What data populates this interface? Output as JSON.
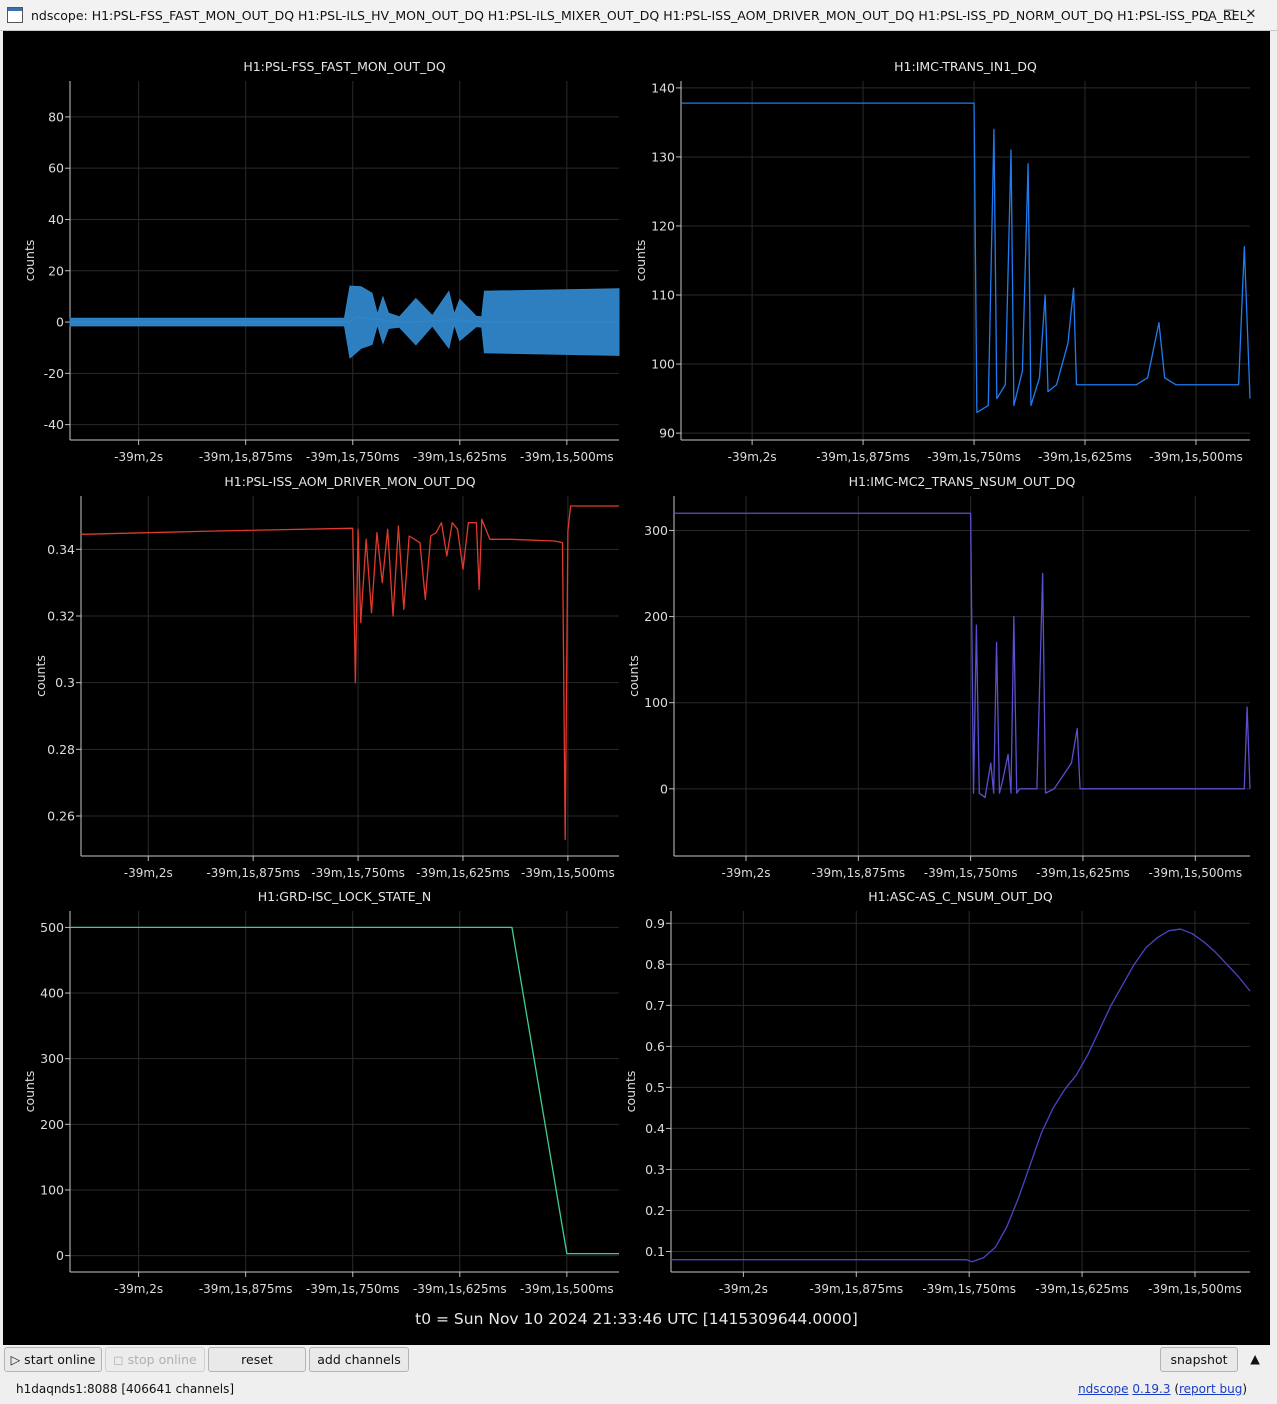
{
  "window": {
    "title": "ndscope: H1:PSL-FSS_FAST_MON_OUT_DQ H1:PSL-ILS_HV_MON_OUT_DQ H1:PSL-ILS_MIXER_OUT_DQ H1:PSL-ISS_AOM_DRIVER_MON_OUT_DQ H1:PSL-ISS_PD_NORM_OUT_DQ H1:PSL-ISS_PDA_REL_",
    "minimize_glyph": "_",
    "maximize_glyph": "□",
    "close_glyph": "✕"
  },
  "toolbar": {
    "start_online": "▷ start online",
    "stop_online": "◻ stop online",
    "reset": "reset",
    "add_channels": "add channels",
    "snapshot": "snapshot",
    "collapse_glyph": "▲"
  },
  "status": {
    "server": "h1daqnds1:8088  [406641 channels]",
    "app_name": "ndscope",
    "version": "0.19.3",
    "open_paren": " (",
    "report_bug": "report bug",
    "close_paren": ")"
  },
  "t0_label": "t0 = Sun Nov 10 2024 21:33:46 UTC [1415309644.0000]",
  "chart_data": [
    {
      "type": "line",
      "title": "H1:PSL-FSS_FAST_MON_OUT_DQ",
      "ylabel": "counts",
      "ylim": [
        -46,
        94
      ],
      "yticks": [
        -40,
        -20,
        0,
        20,
        40,
        60,
        80
      ],
      "xticks": [
        "-39m,2s",
        "-39m,1s,875ms",
        "-39m,1s,750ms",
        "-39m,1s,625ms",
        "-39m,1s,500ms"
      ],
      "color": "#2f86c9",
      "grid": true,
      "series": [
        {
          "points": [
            [
              0,
              0
            ],
            [
              0.51,
              0
            ],
            [
              0.51,
              0
            ],
            [
              0.52,
              2
            ],
            [
              0.6,
              0
            ],
            [
              0.62,
              0
            ],
            [
              0.7,
              1
            ],
            [
              0.75,
              0
            ],
            [
              0.76,
              0
            ],
            [
              1.0,
              0
            ]
          ],
          "envelope": [
            [
              0,
              1.5
            ],
            [
              0.5,
              1.5
            ],
            [
              0.51,
              14
            ],
            [
              0.53,
              12
            ],
            [
              0.55,
              10
            ],
            [
              0.56,
              2
            ],
            [
              0.57,
              9
            ],
            [
              0.58,
              3
            ],
            [
              0.6,
              2
            ],
            [
              0.63,
              9
            ],
            [
              0.66,
              2
            ],
            [
              0.69,
              11
            ],
            [
              0.7,
              2
            ],
            [
              0.71,
              8
            ],
            [
              0.74,
              2
            ],
            [
              0.75,
              2
            ],
            [
              0.755,
              12
            ],
            [
              1.0,
              13
            ]
          ]
        }
      ]
    },
    {
      "type": "line",
      "title": "H1:IMC-TRANS_IN1_DQ",
      "ylabel": "counts",
      "ylim": [
        89,
        141
      ],
      "yticks": [
        90,
        100,
        110,
        120,
        130,
        140
      ],
      "xticks": [
        "-39m,2s",
        "-39m,1s,875ms",
        "-39m,1s,750ms",
        "-39m,1s,625ms",
        "-39m,1s,500ms"
      ],
      "color": "#1f7cf0",
      "grid": true,
      "series": [
        {
          "points": [
            [
              0,
              137.8
            ],
            [
              0.51,
              137.8
            ],
            [
              0.515,
              137.8
            ],
            [
              0.52,
              93
            ],
            [
              0.54,
              94
            ],
            [
              0.55,
              134
            ],
            [
              0.555,
              95
            ],
            [
              0.57,
              97
            ],
            [
              0.58,
              131
            ],
            [
              0.585,
              94
            ],
            [
              0.6,
              99
            ],
            [
              0.61,
              129
            ],
            [
              0.615,
              94
            ],
            [
              0.63,
              98
            ],
            [
              0.64,
              110
            ],
            [
              0.645,
              96
            ],
            [
              0.66,
              97
            ],
            [
              0.68,
              103
            ],
            [
              0.69,
              111
            ],
            [
              0.695,
              97
            ],
            [
              0.8,
              97
            ],
            [
              0.82,
              98
            ],
            [
              0.84,
              106
            ],
            [
              0.85,
              98
            ],
            [
              0.87,
              97
            ],
            [
              0.98,
              97
            ],
            [
              0.99,
              117
            ],
            [
              1.0,
              95
            ]
          ]
        }
      ]
    },
    {
      "type": "line",
      "title": "H1:PSL-ISS_AOM_DRIVER_MON_OUT_DQ",
      "ylabel": "counts",
      "ylim": [
        0.248,
        0.356
      ],
      "yticks": [
        0.26,
        0.28,
        0.3,
        0.32,
        0.34
      ],
      "xticks": [
        "-39m,2s",
        "-39m,1s,875ms",
        "-39m,1s,750ms",
        "-39m,1s,625ms",
        "-39m,1s,500ms"
      ],
      "color": "#e03a2e",
      "grid": true,
      "series": [
        {
          "points": [
            [
              0,
              0.3445
            ],
            [
              0.25,
              0.3455
            ],
            [
              0.5,
              0.3463
            ],
            [
              0.505,
              0.3463
            ],
            [
              0.51,
              0.3
            ],
            [
              0.515,
              0.346
            ],
            [
              0.52,
              0.318
            ],
            [
              0.53,
              0.343
            ],
            [
              0.54,
              0.321
            ],
            [
              0.55,
              0.345
            ],
            [
              0.56,
              0.33
            ],
            [
              0.57,
              0.346
            ],
            [
              0.58,
              0.32
            ],
            [
              0.59,
              0.347
            ],
            [
              0.6,
              0.322
            ],
            [
              0.61,
              0.344
            ],
            [
              0.63,
              0.342
            ],
            [
              0.64,
              0.325
            ],
            [
              0.65,
              0.344
            ],
            [
              0.66,
              0.345
            ],
            [
              0.67,
              0.348
            ],
            [
              0.68,
              0.338
            ],
            [
              0.69,
              0.348
            ],
            [
              0.7,
              0.346
            ],
            [
              0.71,
              0.334
            ],
            [
              0.72,
              0.348
            ],
            [
              0.735,
              0.348
            ],
            [
              0.74,
              0.328
            ],
            [
              0.745,
              0.349
            ],
            [
              0.76,
              0.343
            ],
            [
              0.8,
              0.343
            ],
            [
              0.88,
              0.3425
            ],
            [
              0.895,
              0.342
            ],
            [
              0.9,
              0.253
            ],
            [
              0.905,
              0.3455
            ],
            [
              0.91,
              0.353
            ],
            [
              1.0,
              0.353
            ]
          ]
        }
      ]
    },
    {
      "type": "line",
      "title": "H1:IMC-MC2_TRANS_NSUM_OUT_DQ",
      "ylabel": "counts",
      "ylim": [
        -78,
        340
      ],
      "yticks": [
        0,
        100,
        200,
        300
      ],
      "xticks": [
        "-39m,2s",
        "-39m,1s,875ms",
        "-39m,1s,750ms",
        "-39m,1s,625ms",
        "-39m,1s,500ms"
      ],
      "color": "#5a4fd0",
      "grid": true,
      "series": [
        {
          "points": [
            [
              0,
              320
            ],
            [
              0.51,
              320
            ],
            [
              0.515,
              320
            ],
            [
              0.52,
              -5
            ],
            [
              0.525,
              190
            ],
            [
              0.53,
              -5
            ],
            [
              0.54,
              -10
            ],
            [
              0.55,
              30
            ],
            [
              0.555,
              -5
            ],
            [
              0.56,
              170
            ],
            [
              0.565,
              -5
            ],
            [
              0.57,
              8
            ],
            [
              0.58,
              40
            ],
            [
              0.585,
              -5
            ],
            [
              0.59,
              200
            ],
            [
              0.595,
              -5
            ],
            [
              0.6,
              0
            ],
            [
              0.63,
              0
            ],
            [
              0.64,
              250
            ],
            [
              0.645,
              -5
            ],
            [
              0.66,
              0
            ],
            [
              0.69,
              30
            ],
            [
              0.7,
              70
            ],
            [
              0.705,
              0
            ],
            [
              0.99,
              0
            ],
            [
              0.995,
              95
            ],
            [
              1.0,
              0
            ]
          ]
        }
      ]
    },
    {
      "type": "line",
      "title": "H1:GRD-ISC_LOCK_STATE_N",
      "ylabel": "counts",
      "ylim": [
        -25,
        525
      ],
      "yticks": [
        0,
        100,
        200,
        300,
        400,
        500
      ],
      "xticks": [
        "-39m,2s",
        "-39m,1s,875ms",
        "-39m,1s,750ms",
        "-39m,1s,625ms",
        "-39m,1s,500ms"
      ],
      "color": "#3ecf8e",
      "grid": true,
      "series": [
        {
          "points": [
            [
              0,
              500
            ],
            [
              0.805,
              500
            ],
            [
              0.905,
              3
            ],
            [
              1.0,
              3
            ]
          ]
        }
      ]
    },
    {
      "type": "line",
      "title": "H1:ASC-AS_C_NSUM_OUT_DQ",
      "ylabel": "counts",
      "ylim": [
        0.05,
        0.93
      ],
      "yticks": [
        0.1,
        0.2,
        0.3,
        0.4,
        0.5,
        0.6,
        0.7,
        0.8,
        0.9
      ],
      "xticks": [
        "-39m,2s",
        "-39m,1s,875ms",
        "-39m,1s,750ms",
        "-39m,1s,625ms",
        "-39m,1s,500ms"
      ],
      "color": "#4a44c8",
      "grid": true,
      "series": [
        {
          "points": [
            [
              0,
              0.08
            ],
            [
              0.5,
              0.08
            ],
            [
              0.51,
              0.08
            ],
            [
              0.52,
              0.075
            ],
            [
              0.54,
              0.085
            ],
            [
              0.56,
              0.11
            ],
            [
              0.58,
              0.16
            ],
            [
              0.6,
              0.23
            ],
            [
              0.62,
              0.31
            ],
            [
              0.64,
              0.39
            ],
            [
              0.66,
              0.45
            ],
            [
              0.68,
              0.495
            ],
            [
              0.7,
              0.53
            ],
            [
              0.72,
              0.58
            ],
            [
              0.74,
              0.64
            ],
            [
              0.76,
              0.7
            ],
            [
              0.78,
              0.75
            ],
            [
              0.8,
              0.8
            ],
            [
              0.82,
              0.84
            ],
            [
              0.84,
              0.865
            ],
            [
              0.86,
              0.882
            ],
            [
              0.88,
              0.886
            ],
            [
              0.9,
              0.875
            ],
            [
              0.92,
              0.855
            ],
            [
              0.94,
              0.83
            ],
            [
              0.96,
              0.8
            ],
            [
              0.98,
              0.77
            ],
            [
              1.0,
              0.735
            ]
          ]
        }
      ]
    }
  ]
}
